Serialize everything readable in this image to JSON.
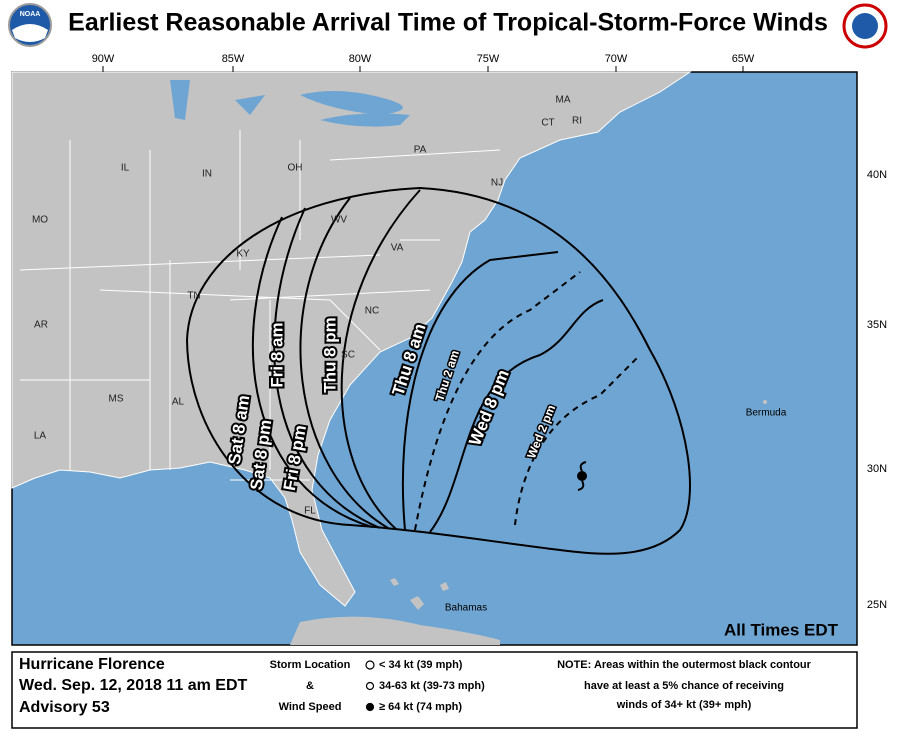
{
  "header": {
    "title": "Earliest Reasonable Arrival Time of Tropical-Storm-Force Winds",
    "logo_left": "NOAA"
  },
  "map": {
    "lon_labels": [
      "90W",
      "85W",
      "80W",
      "75W",
      "70W",
      "65W"
    ],
    "lat_labels": [
      "40N",
      "35N",
      "30N",
      "25N"
    ],
    "region_labels": [
      "MA",
      "CT",
      "RI",
      "PA",
      "NJ",
      "IL",
      "IN",
      "OH",
      "WV",
      "MO",
      "KY",
      "VA",
      "TN",
      "NC",
      "AR",
      "SC",
      "MS",
      "AL",
      "LA",
      "FL"
    ],
    "place_labels": [
      "Bermuda",
      "Bahamas"
    ],
    "contour_labels": [
      "Sat 8 am",
      "Sat 8 pm",
      "Fri 8 am",
      "Fri 8 pm",
      "Thu 8 pm",
      "Thu 8 am",
      "Thu 2 am",
      "Wed 8 pm",
      "Wed 2 pm"
    ],
    "times_note": "All Times EDT"
  },
  "footer": {
    "storm": [
      "Hurricane Florence",
      "Wed. Sep. 12, 2018  11 am EDT",
      "Advisory 53"
    ],
    "legend_title": [
      "Storm Location",
      "&",
      "Wind Speed"
    ],
    "legend_items": [
      "< 34 kt (39 mph)",
      "34-63 kt (39-73 mph)",
      "≥ 64 kt (74 mph)"
    ],
    "note": [
      "NOTE: Areas within the outermost black contour",
      "have at least a 5% chance of receiving",
      "winds of 34+ kt (39+ mph)"
    ]
  }
}
